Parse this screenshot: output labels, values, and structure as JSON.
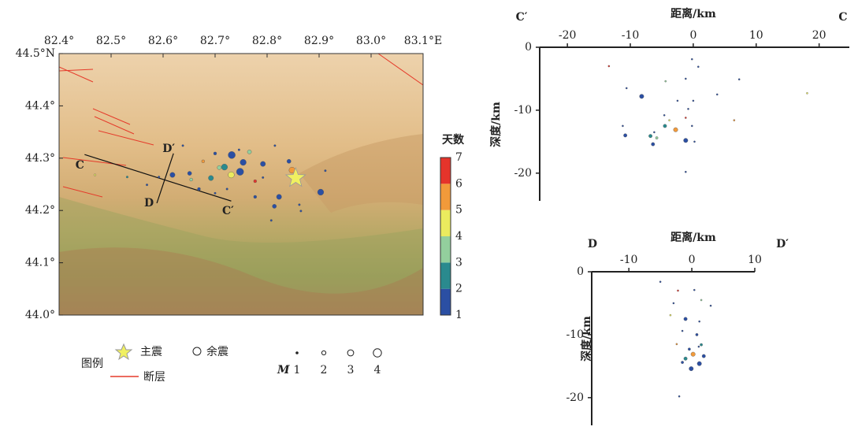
{
  "chart_data": [
    {
      "type": "scatter",
      "xlim": [
        82.4,
        83.1
      ],
      "ylim": [
        44.0,
        44.5
      ],
      "xticks": [
        {
          "value": 82.4,
          "label": "82.4°"
        },
        {
          "value": 82.5,
          "label": "82.5°"
        },
        {
          "value": 82.6,
          "label": "82.6°"
        },
        {
          "value": 82.7,
          "label": "82.7°"
        },
        {
          "value": 82.8,
          "label": "82.8°"
        },
        {
          "value": 82.9,
          "label": "82.9°"
        },
        {
          "value": 83.0,
          "label": "83.0°"
        },
        {
          "value": 83.1,
          "label": "83.1°E"
        }
      ],
      "yticks": [
        {
          "value": 44.0,
          "label": "44.0°"
        },
        {
          "value": 44.1,
          "label": "44.1°"
        },
        {
          "value": 44.2,
          "label": "44.2°"
        },
        {
          "value": 44.3,
          "label": "44.3°"
        },
        {
          "value": 44.4,
          "label": "44.4°"
        },
        {
          "value": 44.5,
          "label": "44.5°N"
        }
      ],
      "points": {
        "x": [
          82.732,
          82.748,
          82.903,
          82.848,
          82.823,
          82.814,
          82.618,
          82.692,
          82.718,
          82.731,
          82.754,
          82.766,
          82.708,
          82.651,
          82.792,
          82.842,
          82.777,
          82.669,
          82.7,
          82.792,
          82.592,
          82.569,
          82.531,
          82.638,
          82.815,
          82.862,
          82.865,
          82.808,
          82.746,
          82.677,
          82.654,
          82.469,
          82.912,
          82.777,
          82.7,
          82.723
        ],
        "y": [
          44.306,
          44.274,
          44.235,
          44.277,
          44.226,
          44.208,
          44.268,
          44.262,
          44.283,
          44.268,
          44.292,
          44.312,
          44.282,
          44.271,
          44.289,
          44.294,
          44.256,
          44.241,
          44.233,
          44.263,
          44.264,
          44.249,
          44.264,
          44.324,
          44.324,
          44.211,
          44.199,
          44.181,
          44.316,
          44.294,
          44.259,
          44.268,
          44.276,
          44.226,
          44.309,
          44.241
        ],
        "size": [
          3.5,
          3.5,
          3,
          3,
          2.5,
          2,
          2.5,
          2.5,
          3,
          3,
          3,
          2,
          2,
          2,
          2.5,
          2,
          1.5,
          1.5,
          1,
          1,
          1,
          1,
          1,
          1,
          1,
          1,
          1,
          1,
          1,
          1.5,
          1.5,
          1,
          1,
          1.5,
          1.5,
          1
        ],
        "day": [
          1.5,
          1.5,
          1.5,
          5.5,
          1.5,
          1.5,
          1.5,
          2.5,
          2.5,
          4.5,
          1.5,
          3.5,
          3.5,
          1.5,
          1.5,
          1.5,
          6.5,
          1.5,
          1.5,
          1.5,
          1.5,
          1.5,
          2.5,
          1.5,
          1.5,
          1.5,
          1.5,
          1.5,
          1.5,
          5.5,
          3.5,
          4.5,
          1.5,
          1.5,
          1.5,
          1.5
        ]
      },
      "mainshock": {
        "x": 82.855,
        "y": 44.262
      },
      "profiles": [
        {
          "start_label": "C",
          "end_label": "C′",
          "start": [
            82.449,
            44.307
          ],
          "end": [
            82.731,
            44.218
          ]
        },
        {
          "start_label": "D",
          "end_label": "D′",
          "start": [
            82.588,
            44.214
          ],
          "end": [
            82.62,
            44.309
          ]
        }
      ],
      "colorbar": {
        "title": "天数",
        "ticks": [
          1,
          2,
          3,
          4,
          5,
          6,
          7
        ],
        "colors": [
          "#2b4fa3",
          "#2a8a8e",
          "#93cf9d",
          "#ebeb5e",
          "#f29a3a",
          "#e5342b"
        ]
      },
      "legend": {
        "title": "图例",
        "mainshock": "主震",
        "aftershock": "余震",
        "fault": "断层"
      },
      "size_legend": {
        "label": "M",
        "values": [
          1,
          2,
          3,
          4
        ]
      }
    },
    {
      "type": "scatter",
      "x_label": "距离/km",
      "y_label": "深度/km",
      "end_labels": [
        "C′",
        "C"
      ],
      "xlim": [
        -24.4,
        24.8
      ],
      "ylim": [
        -24.4,
        0
      ],
      "xticks": [
        -20,
        -10,
        0,
        10,
        20
      ],
      "yticks": [
        0,
        -10,
        -20
      ],
      "points": {
        "x": [
          -13.4,
          -0.2,
          0.8,
          7.3,
          18.1,
          -1.2,
          -4.4,
          -8.2,
          -10.6,
          -2.5,
          -0.8,
          0,
          3.8,
          -4.6,
          -1.2,
          -2.8,
          -4.5,
          -6.8,
          -6.4,
          -10.8,
          -1.2,
          0.2,
          -0.2,
          6.5,
          -1.2,
          -6.2,
          -3.8,
          -11.2,
          -5.8
        ],
        "y": [
          -3,
          -1.9,
          -3.1,
          -5.1,
          -7.3,
          -5,
          -5.4,
          -7.8,
          -6.5,
          -8.5,
          -9.8,
          -8.5,
          -7.5,
          -10.8,
          -11.2,
          -13.1,
          -12.5,
          -14.1,
          -15.4,
          -14,
          -14.8,
          -15,
          -12.5,
          -11.6,
          -19.8,
          -13.5,
          -11.6,
          -12.5,
          -14.4
        ],
        "size": [
          1,
          1,
          1,
          1,
          1,
          1,
          1,
          2.5,
          1,
          1,
          1,
          1,
          1,
          1,
          1,
          2.5,
          2,
          2,
          2,
          2,
          2.5,
          1,
          1,
          1,
          1,
          1,
          1,
          1,
          1.5
        ],
        "day": [
          6.5,
          1.5,
          1.5,
          1.5,
          4.5,
          1.5,
          3.5,
          1.5,
          1.5,
          1.5,
          1.5,
          1.5,
          1.5,
          1.5,
          6.5,
          5.5,
          2.5,
          2.5,
          1.5,
          1.5,
          1.5,
          1.5,
          1.5,
          5.5,
          1.5,
          1.5,
          4.5,
          1.5,
          3.5
        ]
      }
    },
    {
      "type": "scatter",
      "x_label": "距离/km",
      "y_label": "深度/km",
      "end_labels": [
        "D",
        "D′"
      ],
      "xlim": [
        -15.9,
        10
      ],
      "ylim": [
        -24.4,
        0
      ],
      "xticks": [
        -10,
        0,
        10
      ],
      "yticks": [
        0,
        -10,
        -20
      ],
      "points": {
        "x": [
          -5,
          -2.2,
          0.4,
          -2.9,
          1.5,
          3,
          -3.4,
          -1,
          1.2,
          -1.5,
          0.8,
          -2.4,
          1.5,
          -0.4,
          0.2,
          -1,
          1.9,
          1.2,
          -0.1,
          -1.5,
          -2,
          1.1
        ],
        "y": [
          -1.6,
          -3,
          -2.9,
          -5,
          -4.5,
          -5.4,
          -6.9,
          -7.5,
          -7.9,
          -9.4,
          -10,
          -11.5,
          -11.6,
          -12.3,
          -13.1,
          -13.8,
          -13.4,
          -14.6,
          -15.4,
          -14.4,
          -19.8,
          -11.9
        ],
        "size": [
          1,
          1,
          1,
          1,
          1,
          1,
          1,
          2,
          1,
          1,
          1.5,
          1,
          1.5,
          1.5,
          2.5,
          2,
          2,
          2.5,
          2.5,
          1.5,
          1,
          1
        ],
        "day": [
          1.5,
          6.5,
          1.5,
          1.5,
          3.5,
          1.5,
          4.5,
          1.5,
          1.5,
          1.5,
          1.5,
          5.5,
          2.5,
          1.5,
          5.5,
          2.5,
          1.5,
          1.5,
          1.5,
          1.5,
          1.5,
          1.5
        ]
      }
    }
  ]
}
